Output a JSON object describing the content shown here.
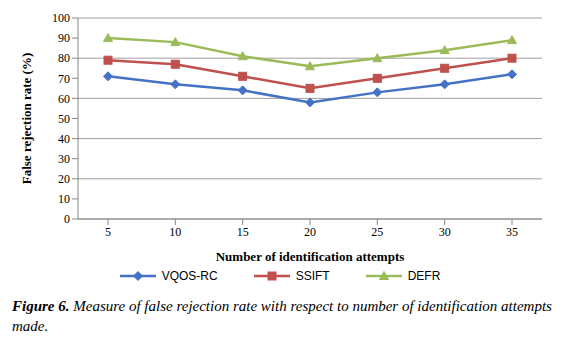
{
  "chart_data": {
    "type": "line",
    "x_label": "Number  of  identification  attempts",
    "y_label": "False rejection rate (%)",
    "categories": [
      "5",
      "10",
      "15",
      "20",
      "25",
      "30",
      "35"
    ],
    "series": [
      {
        "name": "VQOS-RC",
        "color": "#4472c4",
        "marker": "diamond",
        "values": [
          71,
          67,
          64,
          58,
          63,
          67,
          72
        ]
      },
      {
        "name": "SSIFT",
        "color": "#c0504d",
        "marker": "square",
        "values": [
          79,
          77,
          71,
          65,
          70,
          75,
          80
        ]
      },
      {
        "name": "DEFR",
        "color": "#9bbb59",
        "marker": "triangle",
        "values": [
          90,
          88,
          81,
          76,
          80,
          84,
          89
        ]
      }
    ],
    "ylim": [
      0,
      100
    ],
    "yticks": [
      0,
      10,
      20,
      30,
      40,
      50,
      60,
      70,
      80,
      90,
      100
    ],
    "grid": true,
    "legend": "bottom"
  },
  "caption": {
    "label": "Figure 6.",
    "text": "Measure of false rejection rate with respect to number of identification attempts made."
  }
}
